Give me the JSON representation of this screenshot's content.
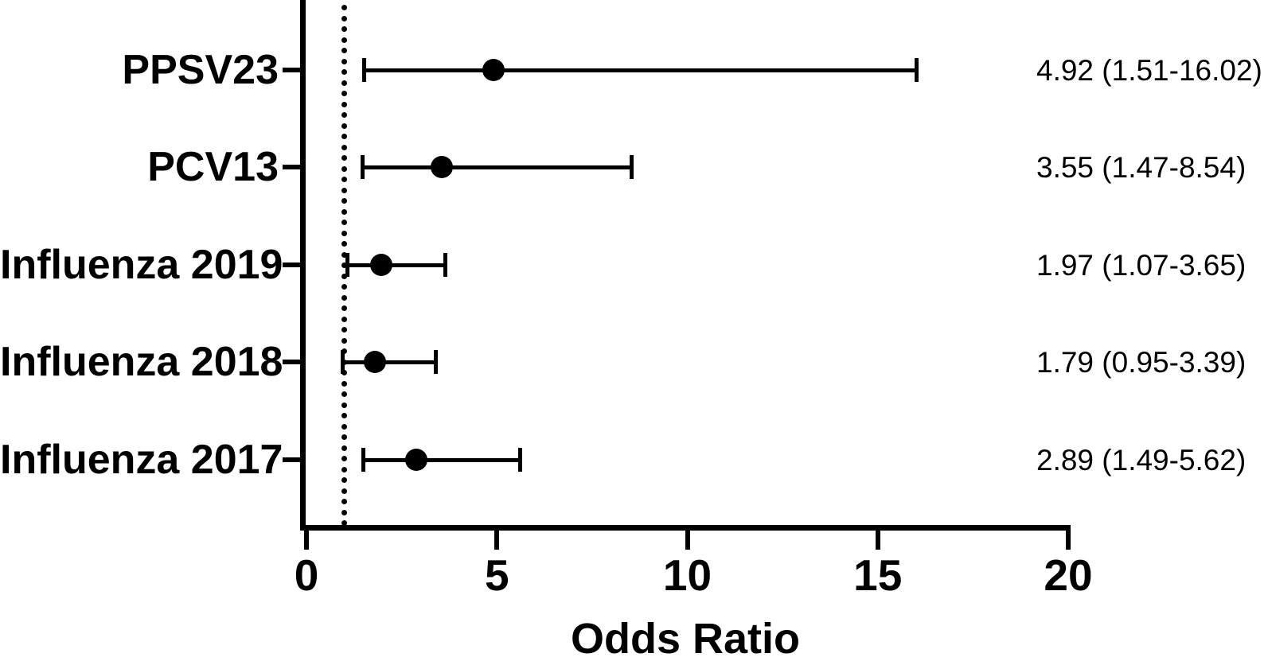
{
  "chart_data": {
    "type": "scatter",
    "variant": "forest-plot",
    "title": "",
    "xlabel": "Odds Ratio",
    "ylabel": "",
    "xlim": [
      0,
      20
    ],
    "xticks": [
      0,
      5,
      10,
      15,
      20
    ],
    "xtick_labels": [
      "0",
      "5",
      "10",
      "15",
      "20"
    ],
    "grid": false,
    "legend": false,
    "reference_line_x": 1,
    "reference_line_style": "dotted",
    "marker_color": "#000000",
    "line_color": "#000000",
    "background_color": "#ffffff",
    "categories": [
      "PPSV23",
      "PCV13",
      "Influenza 2019",
      "Influenza 2018",
      "Influenza 2017"
    ],
    "series": [
      {
        "name": "Odds Ratio",
        "values": [
          4.92,
          3.55,
          1.97,
          1.79,
          2.89
        ],
        "ci_low": [
          1.51,
          1.47,
          1.07,
          0.95,
          1.49
        ],
        "ci_high": [
          16.02,
          8.54,
          3.65,
          3.39,
          5.62
        ]
      }
    ],
    "annotations": [
      "4.92 (1.51-16.02)",
      "3.55 (1.47-8.54)",
      "1.97 (1.07-3.65)",
      "1.79 (0.95-3.39)",
      "2.89 (1.49-5.62)"
    ]
  }
}
